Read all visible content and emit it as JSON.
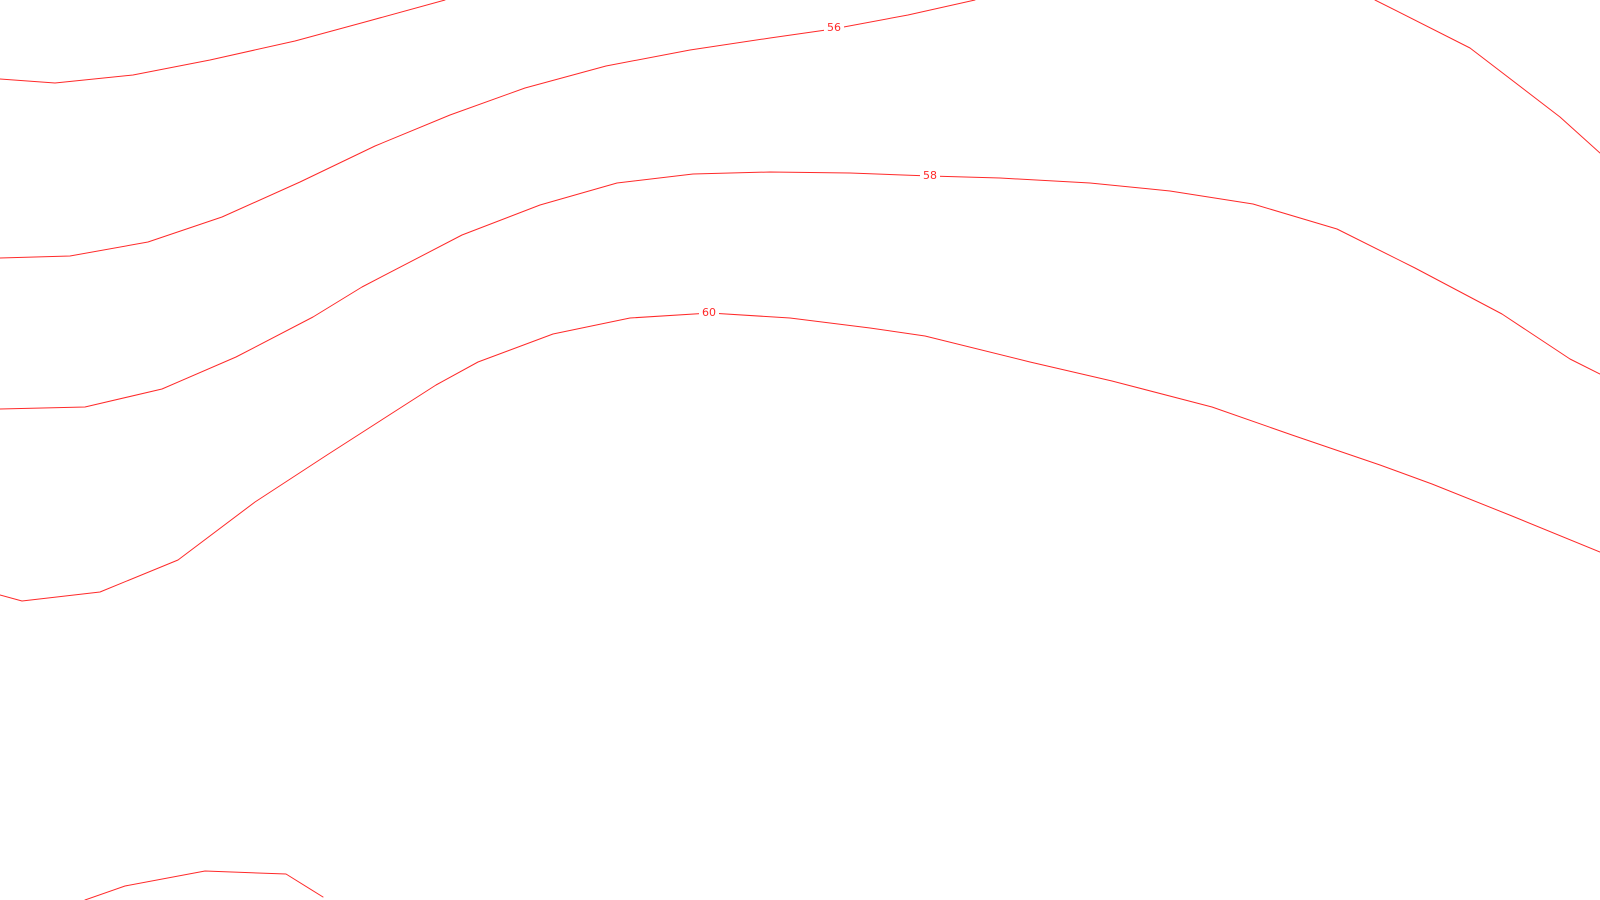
{
  "map": {
    "line_color": "#ff2a2a",
    "label_color": "#ff2a2a",
    "background": "#ffffff",
    "contours": [
      {
        "id": "contour-upper-left",
        "value": null,
        "label": ""
      },
      {
        "id": "contour-56",
        "value": 56,
        "label": "56"
      },
      {
        "id": "contour-58",
        "value": 58,
        "label": "58"
      },
      {
        "id": "contour-60",
        "value": 60,
        "label": "60"
      },
      {
        "id": "contour-upper-right",
        "value": null,
        "label": ""
      },
      {
        "id": "contour-bottom-left",
        "value": null,
        "label": ""
      }
    ]
  }
}
